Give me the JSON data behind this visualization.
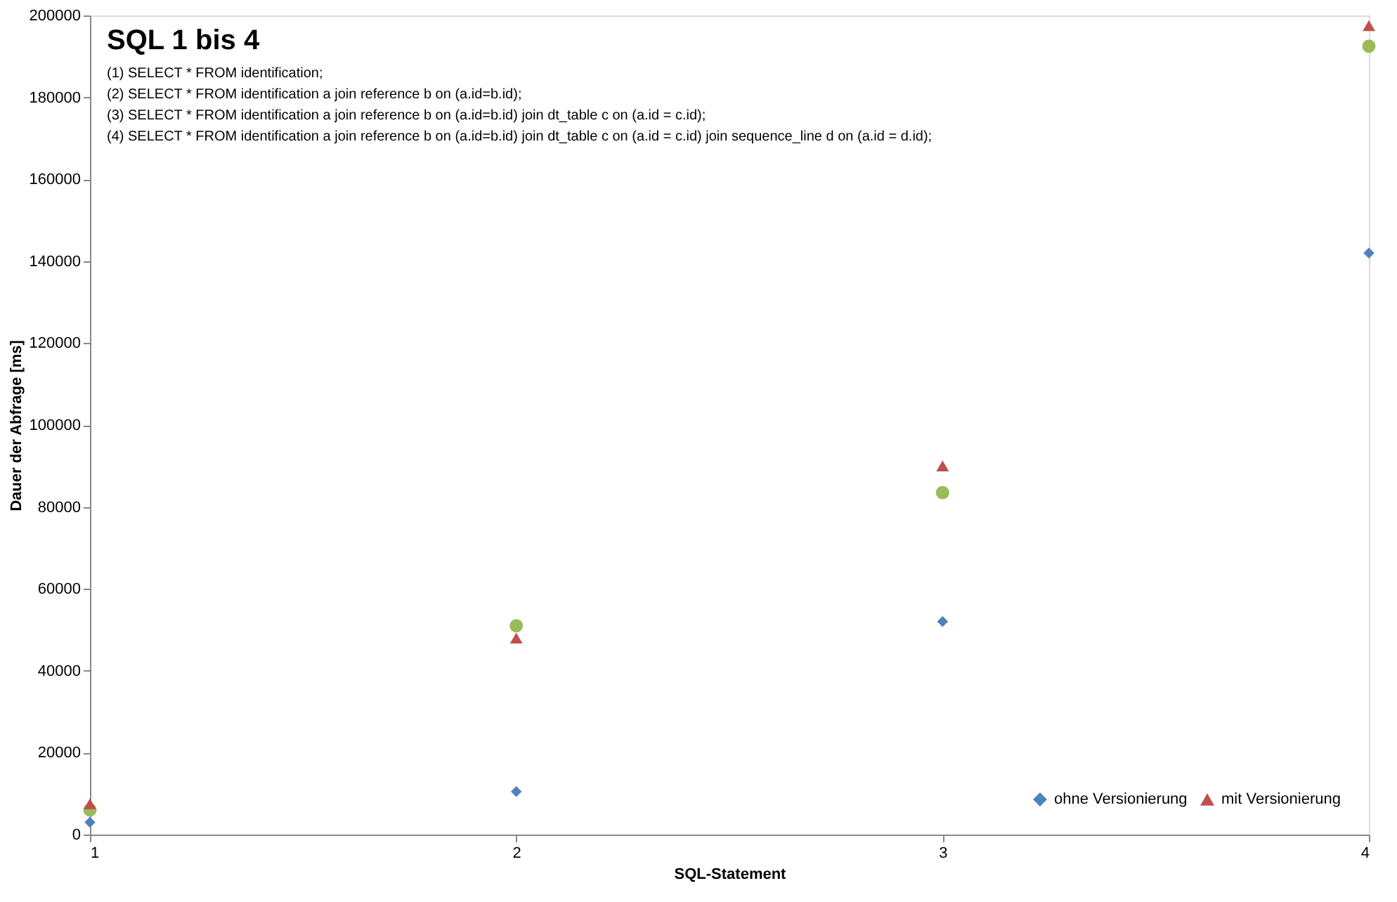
{
  "chart_data": {
    "type": "scatter",
    "title": "SQL 1 bis 4",
    "annotations": [
      "(1) SELECT * FROM identification;",
      "(2) SELECT * FROM identification a join reference b on (a.id=b.id);",
      "(3) SELECT * FROM identification a join reference b on (a.id=b.id) join dt_table c on (a.id = c.id);",
      "(4) SELECT * FROM identification a join reference b on (a.id=b.id) join dt_table c on (a.id = c.id) join sequence_line d on (a.id = d.id);"
    ],
    "xlabel": "SQL-Statement",
    "ylabel": "Dauer der Abfrage [ms]",
    "x": [
      1,
      2,
      3,
      4
    ],
    "xlim": [
      1,
      4
    ],
    "xticks": [
      1,
      2,
      3,
      4
    ],
    "ylim": [
      0,
      200000
    ],
    "yticks": [
      0,
      20000,
      40000,
      60000,
      80000,
      100000,
      120000,
      140000,
      160000,
      180000,
      200000
    ],
    "grid": false,
    "legend": "bottom right",
    "series": [
      {
        "name": "ohne Versionierung",
        "color": "#4f81bd",
        "marker": "diamond",
        "values": [
          3000,
          10500,
          52000,
          142000
        ]
      },
      {
        "name": "mit Versionierung",
        "color": "#c0504d",
        "marker": "triangle",
        "values": [
          7500,
          48000,
          90000,
          197500
        ]
      },
      {
        "color": "#9bbb59",
        "marker": "circle",
        "values": [
          6000,
          51000,
          83500,
          192500
        ]
      }
    ]
  }
}
